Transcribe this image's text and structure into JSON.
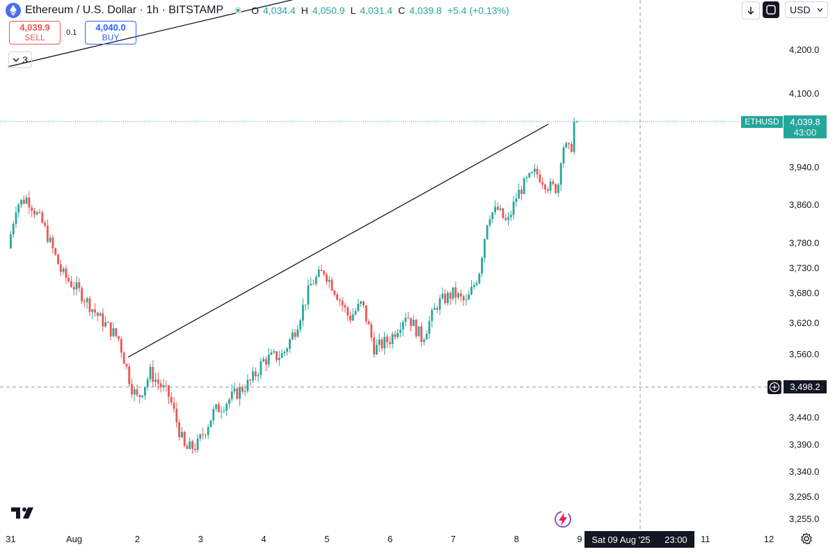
{
  "header": {
    "symbol_title": "Ethereum / U.S. Dollar · 1h · BITSTAMP",
    "ohlc": [
      {
        "key": "O",
        "value": "4,034.4"
      },
      {
        "key": "H",
        "value": "4,050.9"
      },
      {
        "key": "L",
        "value": "4,031.4"
      },
      {
        "key": "C",
        "value": "4,039.8"
      }
    ],
    "change": "+5.4 (+0.13%)"
  },
  "trade": {
    "sell_price": "4,039.9",
    "sell_label": "SELL",
    "spread": "0.1",
    "buy_price": "4,040.0",
    "buy_label": "BUY"
  },
  "indicators_collapse": {
    "count": "3"
  },
  "toolbar": {
    "currency": "USD"
  },
  "price_label": {
    "symbol": "ETHUSD",
    "price": "4,039.8",
    "countdown": "43:00"
  },
  "crosshair": {
    "price": "3,498.2",
    "date_label": "Sat 09 Aug '25",
    "time_label": "23:00"
  },
  "colors": {
    "up": "#26a69a",
    "down": "#ef5350",
    "text": "#131722",
    "accent": "#2962ff"
  },
  "icons": [
    "ethereum-icon",
    "status-dot-icon",
    "chevron-down-icon",
    "arrow-down-icon",
    "screenshot-icon",
    "tradingview-logo-icon",
    "bolt-icon",
    "gear-icon",
    "plus-circle-icon"
  ],
  "chart_data": {
    "type": "candlestick",
    "title": "Ethereum / U.S. Dollar · 1h · BITSTAMP",
    "y_ticks": [
      "4,200.0",
      "4,100.0",
      "3,940.0",
      "3,860.0",
      "3,780.0",
      "3,730.0",
      "3,680.0",
      "3,620.0",
      "3,560.0",
      "3,440.0",
      "3,390.0",
      "3,340.0",
      "3,295.0",
      "3,255.0"
    ],
    "y_tick_values": [
      4200,
      4100,
      3940,
      3860,
      3780,
      3730,
      3680,
      3620,
      3560,
      3440,
      3390,
      3340,
      3295,
      3255
    ],
    "x_ticks": [
      "31",
      "Aug",
      "2",
      "3",
      "4",
      "5",
      "6",
      "7",
      "8",
      "9",
      "11",
      "12"
    ],
    "x_tick_days": [
      -1,
      0,
      1,
      2,
      3,
      4,
      5,
      6,
      7,
      8,
      10,
      11
    ],
    "price_keypoints": [
      {
        "t": -1.05,
        "p": 3770
      },
      {
        "t": -0.92,
        "p": 3860
      },
      {
        "t": -0.75,
        "p": 3875
      },
      {
        "t": -0.5,
        "p": 3820
      },
      {
        "t": -0.2,
        "p": 3720
      },
      {
        "t": 0.1,
        "p": 3680
      },
      {
        "t": 0.4,
        "p": 3630
      },
      {
        "t": 0.7,
        "p": 3590
      },
      {
        "t": 0.9,
        "p": 3500
      },
      {
        "t": 1.0,
        "p": 3475
      },
      {
        "t": 1.2,
        "p": 3525
      },
      {
        "t": 1.5,
        "p": 3480
      },
      {
        "t": 1.75,
        "p": 3380
      },
      {
        "t": 1.95,
        "p": 3390
      },
      {
        "t": 2.2,
        "p": 3450
      },
      {
        "t": 2.5,
        "p": 3480
      },
      {
        "t": 2.8,
        "p": 3510
      },
      {
        "t": 3.0,
        "p": 3550
      },
      {
        "t": 3.3,
        "p": 3560
      },
      {
        "t": 3.5,
        "p": 3610
      },
      {
        "t": 3.75,
        "p": 3700
      },
      {
        "t": 3.95,
        "p": 3725
      },
      {
        "t": 4.15,
        "p": 3680
      },
      {
        "t": 4.35,
        "p": 3630
      },
      {
        "t": 4.55,
        "p": 3660
      },
      {
        "t": 4.75,
        "p": 3570
      },
      {
        "t": 5.0,
        "p": 3590
      },
      {
        "t": 5.25,
        "p": 3640
      },
      {
        "t": 5.5,
        "p": 3590
      },
      {
        "t": 5.75,
        "p": 3660
      },
      {
        "t": 6.0,
        "p": 3680
      },
      {
        "t": 6.2,
        "p": 3660
      },
      {
        "t": 6.4,
        "p": 3720
      },
      {
        "t": 6.55,
        "p": 3840
      },
      {
        "t": 6.7,
        "p": 3850
      },
      {
        "t": 6.85,
        "p": 3820
      },
      {
        "t": 7.0,
        "p": 3880
      },
      {
        "t": 7.15,
        "p": 3910
      },
      {
        "t": 7.3,
        "p": 3930
      },
      {
        "t": 7.5,
        "p": 3900
      },
      {
        "t": 7.65,
        "p": 3895
      },
      {
        "t": 7.72,
        "p": 3990
      },
      {
        "t": 7.85,
        "p": 3975
      },
      {
        "t": 7.95,
        "p": 4039.8
      }
    ],
    "trendlines": [
      {
        "t1": 0.85,
        "p1": 3555,
        "t2": 7.5,
        "p2": 4034
      },
      {
        "t1": -1.05,
        "p1": 4162,
        "t2": 6.55,
        "p2": 4420
      }
    ],
    "current_price": 4039.8,
    "crosshair_price": 3498.2
  }
}
